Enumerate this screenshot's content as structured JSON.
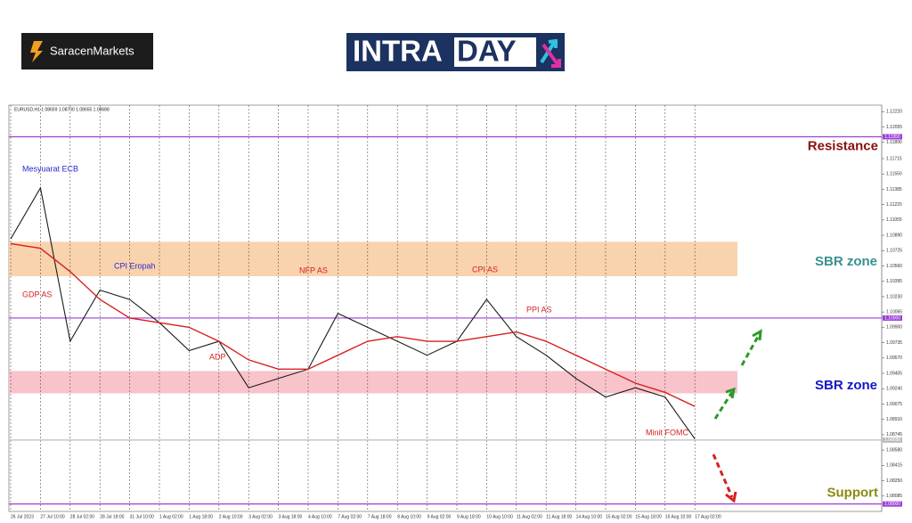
{
  "brand": {
    "left": "SaracenMarkets",
    "right": {
      "part1": "INTRA",
      "part2": "DAY"
    }
  },
  "chart_data": {
    "type": "line",
    "header": "EURUSD,H1 1.08659 1.08700 1.08655 1.08688",
    "categories": [
      "26 Jul 2023",
      "27 Jul 10:00",
      "28 Jul 02:00",
      "28 Jul 18:00",
      "31 Jul 10:00",
      "1 Aug 02:00",
      "1 Aug 18:00",
      "2 Aug 10:00",
      "3 Aug 02:00",
      "3 Aug 18:00",
      "4 Aug 10:00",
      "7 Aug 02:00",
      "7 Aug 18:00",
      "8 Aug 10:00",
      "9 Aug 02:00",
      "9 Aug 18:00",
      "10 Aug 10:00",
      "11 Aug 02:00",
      "11 Aug 18:00",
      "14 Aug 10:00",
      "15 Aug 02:00",
      "15 Aug 18:00",
      "16 Aug 10:00",
      "17 Aug 02:00"
    ],
    "series": [
      {
        "color": "#1a1a1a",
        "values": [
          1.1085,
          1.114,
          1.0975,
          1.103,
          1.102,
          1.0995,
          1.0965,
          1.0975,
          1.0925,
          1.0935,
          1.0945,
          1.1005,
          1.099,
          1.0975,
          1.096,
          1.0975,
          1.102,
          1.098,
          1.096,
          1.0935,
          1.0915,
          1.0925,
          1.0915,
          1.087
        ]
      },
      {
        "color": "#d62020",
        "values": [
          1.108,
          1.1075,
          1.105,
          1.102,
          1.1,
          1.0995,
          1.099,
          1.0975,
          1.0955,
          1.0945,
          1.0945,
          1.096,
          1.0975,
          1.098,
          1.0975,
          1.0975,
          1.098,
          1.0985,
          1.0975,
          1.096,
          1.0945,
          1.093,
          1.092,
          1.0905
        ]
      }
    ],
    "ylim": [
      1.0792,
      1.1229
    ],
    "yticks": [
      {
        "value": 1.1222,
        "label": "1.12220"
      },
      {
        "value": 1.12055,
        "label": "1.12055"
      },
      {
        "value": 1.1189,
        "label": "1.11890"
      },
      {
        "value": 1.11715,
        "label": "1.11715"
      },
      {
        "value": 1.1155,
        "label": "1.11550"
      },
      {
        "value": 1.11385,
        "label": "1.11385"
      },
      {
        "value": 1.1122,
        "label": "1.11220"
      },
      {
        "value": 1.11055,
        "label": "1.11055"
      },
      {
        "value": 1.1089,
        "label": "1.10890"
      },
      {
        "value": 1.10725,
        "label": "1.10725"
      },
      {
        "value": 1.1056,
        "label": "1.10560"
      },
      {
        "value": 1.10395,
        "label": "1.10395"
      },
      {
        "value": 1.1023,
        "label": "1.10230"
      },
      {
        "value": 1.10065,
        "label": "1.10065"
      },
      {
        "value": 1.099,
        "label": "1.09900"
      },
      {
        "value": 1.09735,
        "label": "1.09735"
      },
      {
        "value": 1.0957,
        "label": "1.09570"
      },
      {
        "value": 1.09405,
        "label": "1.09405"
      },
      {
        "value": 1.0924,
        "label": "1.09240"
      },
      {
        "value": 1.09075,
        "label": "1.09075"
      },
      {
        "value": 1.0891,
        "label": "1.08910"
      },
      {
        "value": 1.08745,
        "label": "1.08745"
      },
      {
        "value": 1.0858,
        "label": "1.08580"
      },
      {
        "value": 1.08415,
        "label": "1.08415"
      },
      {
        "value": 1.0825,
        "label": "1.08250"
      },
      {
        "value": 1.08085,
        "label": "1.08085"
      }
    ],
    "levels": [
      {
        "value": 1.1195,
        "label": "1.11950",
        "color": "#9b3fd6",
        "name": "Resistance",
        "name_color": "#8b1010"
      },
      {
        "value": 1.1,
        "label": "1.10000",
        "color": "#9b3fd6"
      },
      {
        "value": 1.08688,
        "label": "1.08688",
        "color": "#bbbbbb"
      },
      {
        "value": 1.08,
        "label": "1.08000",
        "color": "#9b3fd6",
        "name": "Support",
        "name_color": "#8a8a10"
      }
    ],
    "zones": [
      {
        "from": 1.1045,
        "to": 1.1082,
        "color": "#f9d3ad",
        "name": "SBR zone",
        "name_color": "#3a8f8f"
      },
      {
        "from": 1.0919,
        "to": 1.0943,
        "color": "#f9c3cb",
        "name": "SBR zone",
        "name_color": "#1515c8"
      }
    ],
    "annotations": [
      {
        "text": "Mesyuarat ECB",
        "color": "#2a2ad0"
      },
      {
        "text": "GDP AS",
        "color": "#d62020"
      },
      {
        "text": "CPI Eropah",
        "color": "#2a2ad0"
      },
      {
        "text": "NFP AS",
        "color": "#d62020"
      },
      {
        "text": "ADP",
        "color": "#d62020"
      },
      {
        "text": "CPI AS",
        "color": "#d62020"
      },
      {
        "text": "PPI AS",
        "color": "#d62020"
      },
      {
        "text": "Minit FOMC",
        "color": "#d62020"
      }
    ],
    "grid": true
  }
}
